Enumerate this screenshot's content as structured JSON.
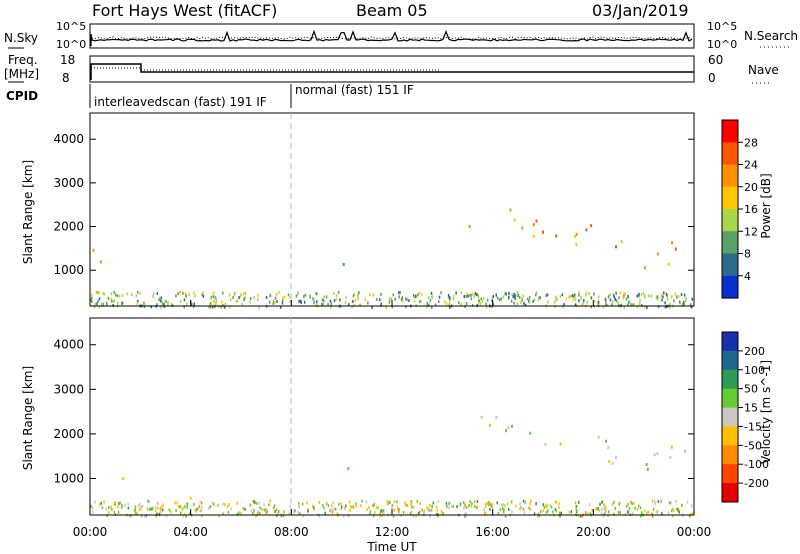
{
  "header": {
    "station": "Fort Hays West (fitACF)",
    "beam": "Beam 05",
    "date": "03/Jan/2019"
  },
  "top_panels": {
    "nsky_label": "N.Sky",
    "nsearch_label": "N.Search",
    "noise_ticks": [
      "10^5",
      "10^0"
    ],
    "freq_label": "Freq.",
    "freq_unit": "[MHz]",
    "freq_ticks": [
      "18",
      "8"
    ],
    "nave_label": "Nave",
    "nave_ticks": [
      "60",
      "0"
    ],
    "cpid_label": "CPID",
    "cpid_segments": [
      {
        "label": "interleavedscan (fast) 191 IF",
        "start_hour": 0
      },
      {
        "label": "normal (fast) 151 IF",
        "start_hour": 8
      }
    ]
  },
  "chart_data": [
    {
      "type": "heatmap",
      "name": "power",
      "ylabel": "Slant Range [km]",
      "xlabel": "",
      "xlim": [
        0,
        24
      ],
      "ylim": [
        180,
        4600
      ],
      "yticks": [
        1000,
        2000,
        3000,
        4000
      ],
      "colorbar_label": "Power [dB]",
      "colorbar_ticks": [
        "28",
        "24",
        "20",
        "16",
        "12",
        "8",
        "4"
      ],
      "colorbar_colors": [
        "#ff0000",
        "#ff5500",
        "#ff9000",
        "#ffc800",
        "#a8d84a",
        "#5aa067",
        "#2e6a8c",
        "#0a2fd0"
      ],
      "features": [
        {
          "t0": 0.1,
          "t1": 1.5,
          "r0": 200,
          "r1": 1600,
          "power_db": 24
        },
        {
          "t0": 1.5,
          "t1": 7.7,
          "r0": 330,
          "r1": 600,
          "power_db": 14
        },
        {
          "t0": 8.0,
          "t1": 10.5,
          "r0": 1080,
          "r1": 1430,
          "power_db": 10
        },
        {
          "t0": 14.5,
          "t1": 23.8,
          "r0": 600,
          "r1": 2600,
          "power_db": 22
        }
      ]
    },
    {
      "type": "heatmap",
      "name": "velocity",
      "ylabel": "Slant Range [km]",
      "xlabel": "Time UT",
      "xlim": [
        0,
        24
      ],
      "ylim": [
        180,
        4600
      ],
      "yticks": [
        1000,
        2000,
        3000,
        4000
      ],
      "xticks": [
        "00:00",
        "04:00",
        "08:00",
        "12:00",
        "16:00",
        "20:00",
        "00:00"
      ],
      "colorbar_label": "Velocity [m s^-1]",
      "colorbar_ticks": [
        "200",
        "100",
        "50",
        "15",
        "-15",
        "-50",
        "-100",
        "-200"
      ],
      "colorbar_colors": [
        "#1a2fb0",
        "#1e6a8c",
        "#2e9a55",
        "#66cc33",
        "#c8c8c0",
        "#ffc000",
        "#ff8c00",
        "#ff4400",
        "#e60000"
      ],
      "features": [
        {
          "t0": 0.1,
          "t1": 1.5,
          "r0": 200,
          "r1": 1600,
          "velocity": -30
        },
        {
          "t0": 1.5,
          "t1": 7.7,
          "r0": 350,
          "r1": 600,
          "velocity": -40
        },
        {
          "t0": 8.0,
          "t1": 10.5,
          "r0": 1080,
          "r1": 1430,
          "velocity": 15
        },
        {
          "t0": 14.5,
          "t1": 23.8,
          "r0": 600,
          "r1": 2700,
          "velocity": 0
        }
      ]
    }
  ]
}
